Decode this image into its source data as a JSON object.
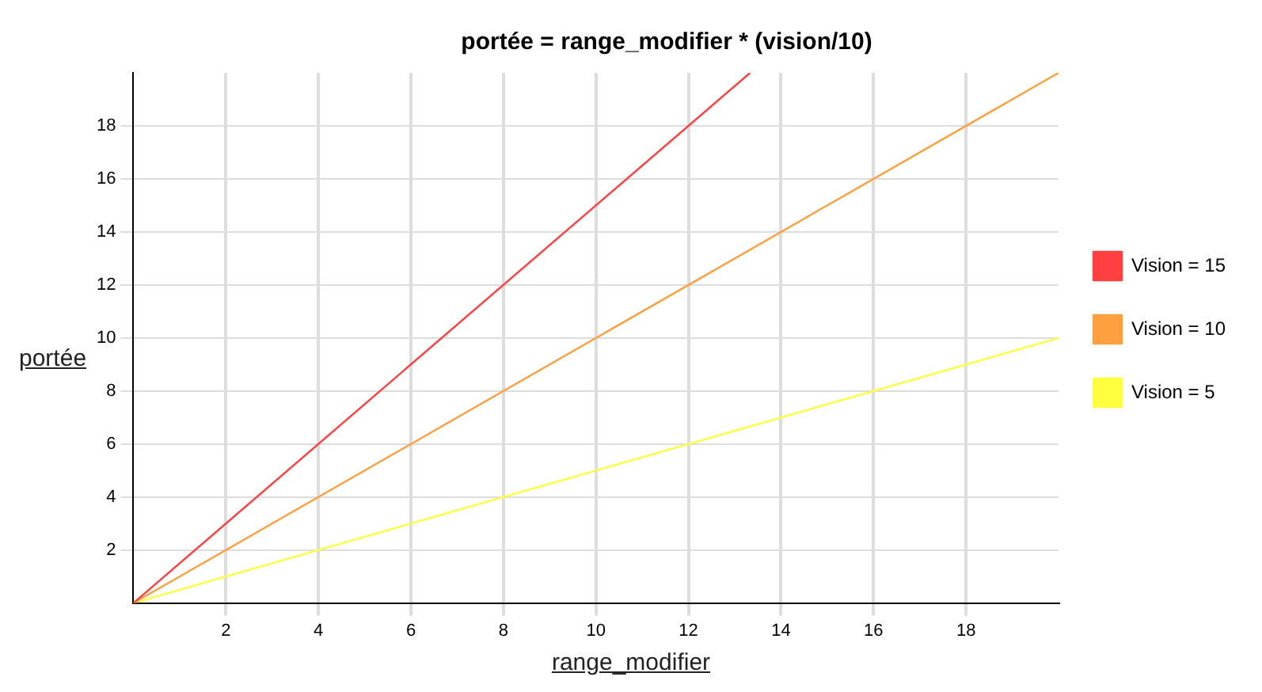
{
  "chart_data": {
    "type": "line",
    "title": "portée = range_modifier * (vision/10)",
    "xlabel": "range_modifier",
    "ylabel": "portée",
    "xlim": [
      0,
      20
    ],
    "ylim": [
      0,
      20
    ],
    "xticks": [
      2,
      4,
      6,
      8,
      10,
      12,
      14,
      16,
      18
    ],
    "yticks": [
      2,
      4,
      6,
      8,
      10,
      12,
      14,
      16,
      18
    ],
    "grid": true,
    "legend": "right",
    "marker": "none",
    "line_style": "solid",
    "series": [
      {
        "name": "Vision = 15",
        "color": "#ff4040",
        "x": [
          0,
          13.33
        ],
        "values": [
          0,
          20
        ]
      },
      {
        "name": "Vision = 10",
        "color": "#ffa040",
        "x": [
          0,
          20
        ],
        "values": [
          0,
          20
        ]
      },
      {
        "name": "Vision = 5",
        "color": "#ffff40",
        "x": [
          0,
          20
        ],
        "values": [
          0,
          10
        ]
      }
    ]
  }
}
